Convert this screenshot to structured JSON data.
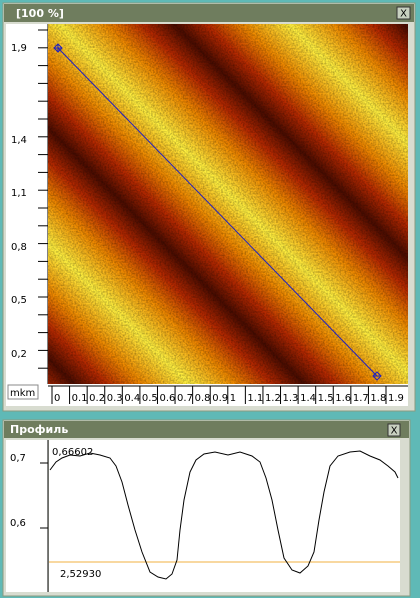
{
  "window": {
    "title": "[100 %]",
    "close": "X",
    "y_ruler": [
      "1,9",
      "1,4",
      "1,1",
      "0,8",
      "0,5",
      "0,2"
    ],
    "unit": "mkm",
    "x_ruler": [
      "0",
      "0.1",
      "0.2",
      "0.3",
      "0.4",
      "0.5",
      "0.6",
      "0.7",
      "0.8",
      "0.9",
      "1",
      "1.1",
      "1.2",
      "1.3",
      "1.4",
      "1.5",
      "1.6",
      "1.7",
      "1.8",
      "1.9"
    ]
  },
  "profile": {
    "title": "Профиль",
    "close": "X",
    "y_ruler": [
      "0,7",
      "0,6"
    ],
    "max_label": "0,66602",
    "cursor_label": "2,52930"
  }
}
